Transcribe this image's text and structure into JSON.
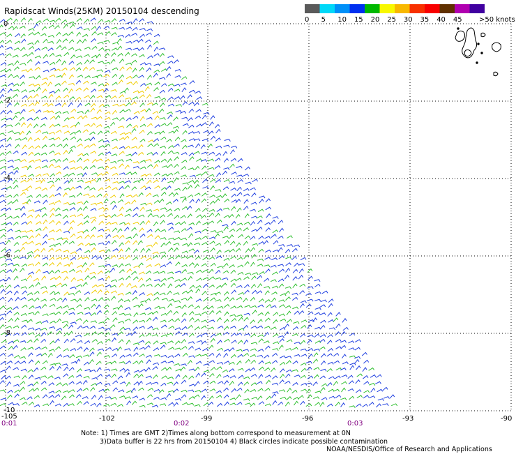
{
  "title": "Rapidscat Winds(25KM) 20150104 descending",
  "legend": {
    "labels": [
      "0",
      "5",
      "10",
      "15",
      "20",
      "25",
      "30",
      "35",
      "40",
      "45",
      ">50 knots"
    ],
    "colors": [
      "#5a5a5a",
      "#00d8f8",
      "#0090f8",
      "#0030f0",
      "#00b800",
      "#f8f800",
      "#f8b800",
      "#f83000",
      "#f80000",
      "#603000",
      "#b000b0",
      "#4000a0"
    ]
  },
  "axes": {
    "lat_labels": [
      "0",
      "-2",
      "-4",
      "-6",
      "-8",
      "-10"
    ],
    "lon_labels": [
      "-105",
      "-102",
      "-99",
      "-96",
      "-93",
      "-90"
    ]
  },
  "times": [
    "0:01",
    "0:02",
    "0:03"
  ],
  "notes": {
    "line1": "Note: 1) Times are GMT 2)Times along bottom correspond to measurement at 0N",
    "line2": "3)Data buffer is 22 hrs from 20150104 4) Black circles indicate possible contamination",
    "credit": "NOAA/NESDIS/Office of Research and Applications"
  },
  "wind_colors": {
    "blue": "#1f3fe0",
    "green": "#2fbf2f",
    "yellow": "#f0cc00"
  }
}
